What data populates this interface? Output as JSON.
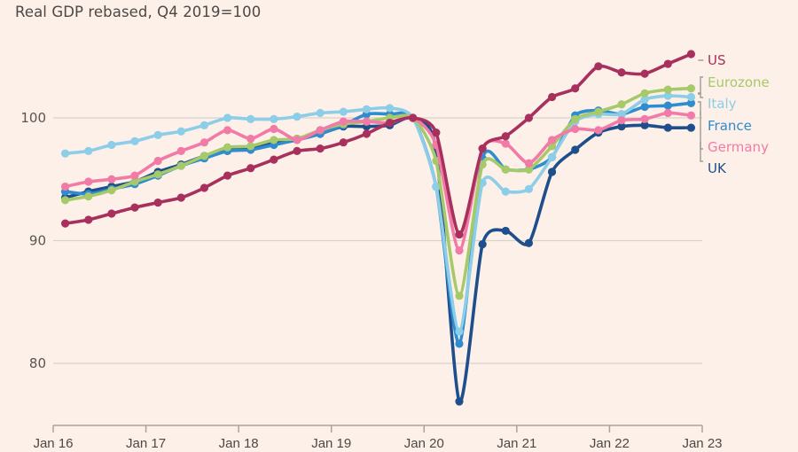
{
  "chart_data": {
    "type": "line",
    "title": "",
    "subtitle": "Real GDP rebased, Q4 2019=100",
    "xlabel": "",
    "ylabel": "",
    "ylim": [
      75,
      106
    ],
    "yticks": [
      80,
      90,
      100
    ],
    "xlim": [
      "Jan 16",
      "Jan 23"
    ],
    "xtick_labels": [
      "Jan 16",
      "Jan 17",
      "Jan 18",
      "Jan 19",
      "Jan 20",
      "Jan 21",
      "Jan 22",
      "Jan 23"
    ],
    "grid": "horizontal",
    "legend": "right (direct labels)",
    "x": [
      "2016Q1",
      "2016Q2",
      "2016Q3",
      "2016Q4",
      "2017Q1",
      "2017Q2",
      "2017Q3",
      "2017Q4",
      "2018Q1",
      "2018Q2",
      "2018Q3",
      "2018Q4",
      "2019Q1",
      "2019Q2",
      "2019Q3",
      "2019Q4",
      "2020Q1",
      "2020Q2",
      "2020Q3",
      "2020Q4",
      "2021Q1",
      "2021Q2",
      "2021Q3",
      "2021Q4",
      "2022Q1",
      "2022Q2",
      "2022Q3",
      "2022Q4"
    ],
    "series": [
      {
        "name": "UK",
        "color": "#1f4e8c",
        "values": [
          93.5,
          94.0,
          94.4,
          94.8,
          95.6,
          96.2,
          96.9,
          97.4,
          97.6,
          98.0,
          98.3,
          98.7,
          99.3,
          99.3,
          99.4,
          100.0,
          97.4,
          76.9,
          89.7,
          90.8,
          89.8,
          95.6,
          97.4,
          98.8,
          99.3,
          99.4,
          99.2,
          99.2
        ]
      },
      {
        "name": "France",
        "color": "#2e8ccf",
        "values": [
          94.0,
          93.8,
          94.2,
          94.6,
          95.3,
          96.1,
          96.7,
          97.3,
          97.4,
          97.8,
          98.2,
          98.7,
          99.4,
          100.3,
          100.3,
          100.0,
          94.4,
          81.6,
          96.7,
          95.8,
          95.8,
          96.8,
          100.2,
          100.6,
          100.3,
          100.9,
          101.0,
          101.2
        ]
      },
      {
        "name": "Italy",
        "color": "#8ccde8",
        "values": [
          97.1,
          97.3,
          97.8,
          98.1,
          98.6,
          98.9,
          99.4,
          100.0,
          99.9,
          99.9,
          100.1,
          100.4,
          100.5,
          100.7,
          100.8,
          100.0,
          94.4,
          82.6,
          94.7,
          94.0,
          94.2,
          96.8,
          99.7,
          100.3,
          100.3,
          101.5,
          101.8,
          101.7
        ]
      },
      {
        "name": "Eurozone",
        "color": "#a6c96a",
        "values": [
          93.3,
          93.6,
          94.1,
          94.8,
          95.4,
          96.1,
          96.9,
          97.6,
          97.7,
          98.2,
          98.3,
          99.0,
          99.5,
          99.7,
          100.0,
          100.0,
          96.5,
          85.5,
          96.2,
          95.8,
          95.8,
          97.7,
          99.9,
          100.5,
          101.1,
          102.0,
          102.3,
          102.4
        ]
      },
      {
        "name": "Germany",
        "color": "#f27aa6",
        "values": [
          94.4,
          94.8,
          95.0,
          95.3,
          96.5,
          97.3,
          98.0,
          99.0,
          98.3,
          99.1,
          98.2,
          99.0,
          99.7,
          99.7,
          99.6,
          100.0,
          97.8,
          89.2,
          97.5,
          97.9,
          96.3,
          98.2,
          99.1,
          99.0,
          99.8,
          99.9,
          100.4,
          100.2
        ]
      },
      {
        "name": "US",
        "color": "#a8305d",
        "values": [
          91.4,
          91.7,
          92.2,
          92.7,
          93.1,
          93.5,
          94.3,
          95.3,
          95.9,
          96.6,
          97.3,
          97.5,
          98.0,
          98.7,
          99.6,
          100.0,
          98.8,
          90.5,
          97.5,
          98.5,
          100.0,
          101.7,
          102.4,
          104.2,
          103.7,
          103.6,
          104.4,
          105.2
        ]
      }
    ],
    "legend_entries": [
      {
        "name": "US",
        "color": "#a8305d"
      },
      {
        "name": "Eurozone",
        "color": "#a6c96a"
      },
      {
        "name": "Italy",
        "color": "#8ccde8"
      },
      {
        "name": "France",
        "color": "#2e8ccf"
      },
      {
        "name": "Germany",
        "color": "#f27aa6"
      },
      {
        "name": "UK",
        "color": "#1f4e8c"
      }
    ]
  },
  "colors": {
    "background": "#fdf0e8",
    "gridline": "#d9d1cc",
    "axis": "#a8a39f",
    "text": "#4d4845"
  }
}
